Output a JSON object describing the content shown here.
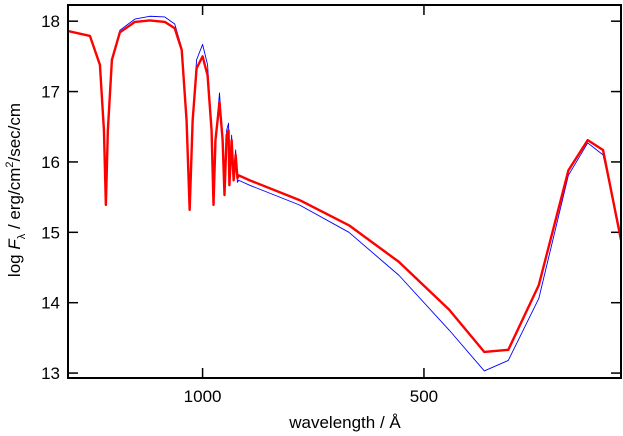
{
  "chart_data": {
    "type": "line",
    "xlabel": "wavelength / Å",
    "ylabel": [
      "log ",
      "F",
      "λ",
      " / erg/cm",
      "2",
      "/sec/cm"
    ],
    "xscale": "reciprocal",
    "xlim": [
      2551,
      346
    ],
    "xticks": [
      1000,
      500
    ],
    "ylim": [
      12.93,
      18.23
    ],
    "yticks": [
      13,
      14,
      15,
      16,
      17,
      18
    ],
    "x": [
      2551,
      2036,
      1865,
      1804,
      1776,
      1748,
      1694,
      1597,
      1441,
      1313,
      1206,
      1144,
      1104,
      1078,
      1062,
      1047,
      1028,
      1000,
      978,
      961,
      953,
      945,
      929,
      917,
      910,
      902,
      895,
      892,
      884,
      877,
      870,
      864,
      860,
      825,
      696,
      602,
      530,
      473,
      440,
      420,
      397,
      377,
      365,
      356,
      346
    ],
    "series": [
      {
        "color": "#0000ff",
        "width": 0.9,
        "values": [
          17.86,
          17.79,
          17.38,
          16.45,
          15.39,
          16.45,
          17.45,
          17.87,
          18.03,
          18.07,
          18.06,
          17.96,
          17.62,
          16.59,
          15.32,
          16.59,
          17.45,
          17.67,
          17.38,
          16.45,
          15.39,
          16.31,
          16.98,
          16.31,
          15.53,
          16.45,
          16.55,
          15.67,
          16.38,
          15.74,
          16.17,
          15.71,
          15.74,
          15.67,
          15.39,
          15.0,
          14.39,
          13.61,
          13.03,
          13.18,
          14.06,
          15.81,
          16.27,
          16.1,
          14.96
        ]
      },
      {
        "color": "#ff0000",
        "width": 2.4,
        "values": [
          17.86,
          17.79,
          17.38,
          16.45,
          15.39,
          16.45,
          17.45,
          17.84,
          17.99,
          18.01,
          17.99,
          17.9,
          17.59,
          16.59,
          15.32,
          16.59,
          17.33,
          17.5,
          17.23,
          16.45,
          15.39,
          16.31,
          16.85,
          16.31,
          15.53,
          16.38,
          16.45,
          15.67,
          16.31,
          15.74,
          16.1,
          15.77,
          15.81,
          15.74,
          15.46,
          15.1,
          14.58,
          13.9,
          13.3,
          13.33,
          14.25,
          15.88,
          16.31,
          16.17,
          14.89
        ]
      }
    ]
  }
}
